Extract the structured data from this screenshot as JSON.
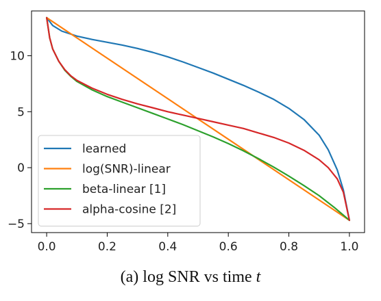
{
  "caption": {
    "prefix": "(a) log SNR vs time ",
    "variable": "t"
  },
  "chart_data": {
    "type": "line",
    "xlim": [
      -0.05,
      1.05
    ],
    "ylim": [
      -5.8,
      14.0
    ],
    "xticks": [
      0.0,
      0.2,
      0.4,
      0.6,
      0.8,
      1.0
    ],
    "xtick_labels": [
      "0.0",
      "0.2",
      "0.4",
      "0.6",
      "0.8",
      "1.0"
    ],
    "yticks": [
      -5,
      0,
      5,
      10
    ],
    "ytick_labels": [
      "−5",
      "0",
      "5",
      "10"
    ],
    "grid": false,
    "legend_position": "lower-left",
    "series": [
      {
        "name": "learned",
        "color": "#1f77b4",
        "points": [
          [
            0.0,
            13.4
          ],
          [
            0.02,
            12.7
          ],
          [
            0.05,
            12.2
          ],
          [
            0.1,
            11.75
          ],
          [
            0.15,
            11.45
          ],
          [
            0.2,
            11.2
          ],
          [
            0.25,
            10.95
          ],
          [
            0.3,
            10.65
          ],
          [
            0.35,
            10.3
          ],
          [
            0.4,
            9.9
          ],
          [
            0.45,
            9.45
          ],
          [
            0.5,
            8.95
          ],
          [
            0.55,
            8.45
          ],
          [
            0.6,
            7.9
          ],
          [
            0.65,
            7.35
          ],
          [
            0.7,
            6.75
          ],
          [
            0.75,
            6.1
          ],
          [
            0.8,
            5.3
          ],
          [
            0.85,
            4.3
          ],
          [
            0.9,
            2.9
          ],
          [
            0.93,
            1.6
          ],
          [
            0.96,
            -0.2
          ],
          [
            0.98,
            -2.0
          ],
          [
            1.0,
            -4.7
          ]
        ]
      },
      {
        "name": "log(SNR)-linear",
        "color": "#ff7f0e",
        "points": [
          [
            0.0,
            13.4
          ],
          [
            1.0,
            -4.7
          ]
        ]
      },
      {
        "name": "beta-linear [1]",
        "color": "#2ca02c",
        "points": [
          [
            0.0,
            13.4
          ],
          [
            0.01,
            11.6
          ],
          [
            0.02,
            10.6
          ],
          [
            0.04,
            9.5
          ],
          [
            0.06,
            8.7
          ],
          [
            0.08,
            8.15
          ],
          [
            0.1,
            7.7
          ],
          [
            0.15,
            6.95
          ],
          [
            0.2,
            6.35
          ],
          [
            0.25,
            5.85
          ],
          [
            0.3,
            5.35
          ],
          [
            0.35,
            4.85
          ],
          [
            0.4,
            4.35
          ],
          [
            0.45,
            3.85
          ],
          [
            0.5,
            3.3
          ],
          [
            0.55,
            2.75
          ],
          [
            0.6,
            2.15
          ],
          [
            0.65,
            1.5
          ],
          [
            0.7,
            0.8
          ],
          [
            0.75,
            0.05
          ],
          [
            0.8,
            -0.75
          ],
          [
            0.85,
            -1.6
          ],
          [
            0.9,
            -2.5
          ],
          [
            0.95,
            -3.55
          ],
          [
            1.0,
            -4.7
          ]
        ]
      },
      {
        "name": "alpha-cosine [2]",
        "color": "#d62728",
        "points": [
          [
            0.0,
            13.4
          ],
          [
            0.01,
            11.6
          ],
          [
            0.02,
            10.6
          ],
          [
            0.04,
            9.5
          ],
          [
            0.06,
            8.75
          ],
          [
            0.08,
            8.2
          ],
          [
            0.1,
            7.8
          ],
          [
            0.15,
            7.1
          ],
          [
            0.2,
            6.55
          ],
          [
            0.25,
            6.1
          ],
          [
            0.3,
            5.7
          ],
          [
            0.35,
            5.35
          ],
          [
            0.4,
            5.0
          ],
          [
            0.45,
            4.7
          ],
          [
            0.5,
            4.4
          ],
          [
            0.55,
            4.1
          ],
          [
            0.6,
            3.8
          ],
          [
            0.65,
            3.5
          ],
          [
            0.7,
            3.1
          ],
          [
            0.75,
            2.7
          ],
          [
            0.8,
            2.2
          ],
          [
            0.85,
            1.55
          ],
          [
            0.9,
            0.7
          ],
          [
            0.93,
            0.0
          ],
          [
            0.96,
            -1.0
          ],
          [
            0.98,
            -2.2
          ],
          [
            1.0,
            -4.7
          ]
        ]
      }
    ]
  }
}
